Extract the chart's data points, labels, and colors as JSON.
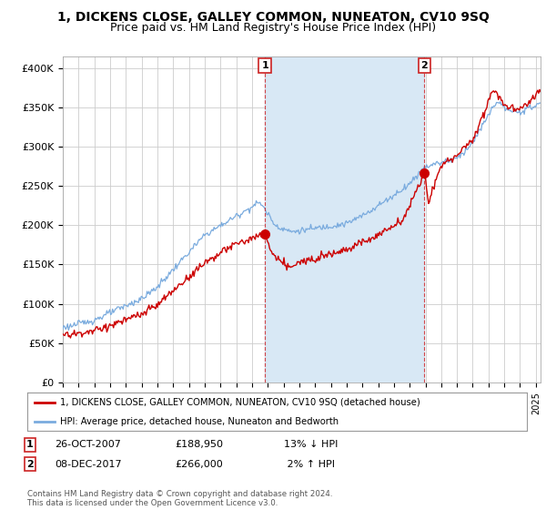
{
  "title": "1, DICKENS CLOSE, GALLEY COMMON, NUNEATON, CV10 9SQ",
  "subtitle": "Price paid vs. HM Land Registry's House Price Index (HPI)",
  "ylabel_ticks": [
    "£0",
    "£50K",
    "£100K",
    "£150K",
    "£200K",
    "£250K",
    "£300K",
    "£350K",
    "£400K"
  ],
  "ytick_values": [
    0,
    50000,
    100000,
    150000,
    200000,
    250000,
    300000,
    350000,
    400000
  ],
  "ylim": [
    0,
    415000
  ],
  "xlim_start": 1995.0,
  "xlim_end": 2025.3,
  "background_color": "#ffffff",
  "plot_bg_color": "#ffffff",
  "shade_color": "#d8e8f5",
  "grid_color": "#cccccc",
  "red_line_color": "#cc0000",
  "blue_line_color": "#7aabde",
  "sale1_x": 2007.82,
  "sale1_y": 188950,
  "sale2_x": 2017.93,
  "sale2_y": 266000,
  "legend_label1": "1, DICKENS CLOSE, GALLEY COMMON, NUNEATON, CV10 9SQ (detached house)",
  "legend_label2": "HPI: Average price, detached house, Nuneaton and Bedworth",
  "footer": "Contains HM Land Registry data © Crown copyright and database right 2024.\nThis data is licensed under the Open Government Licence v3.0.",
  "title_fontsize": 10,
  "subtitle_fontsize": 9
}
